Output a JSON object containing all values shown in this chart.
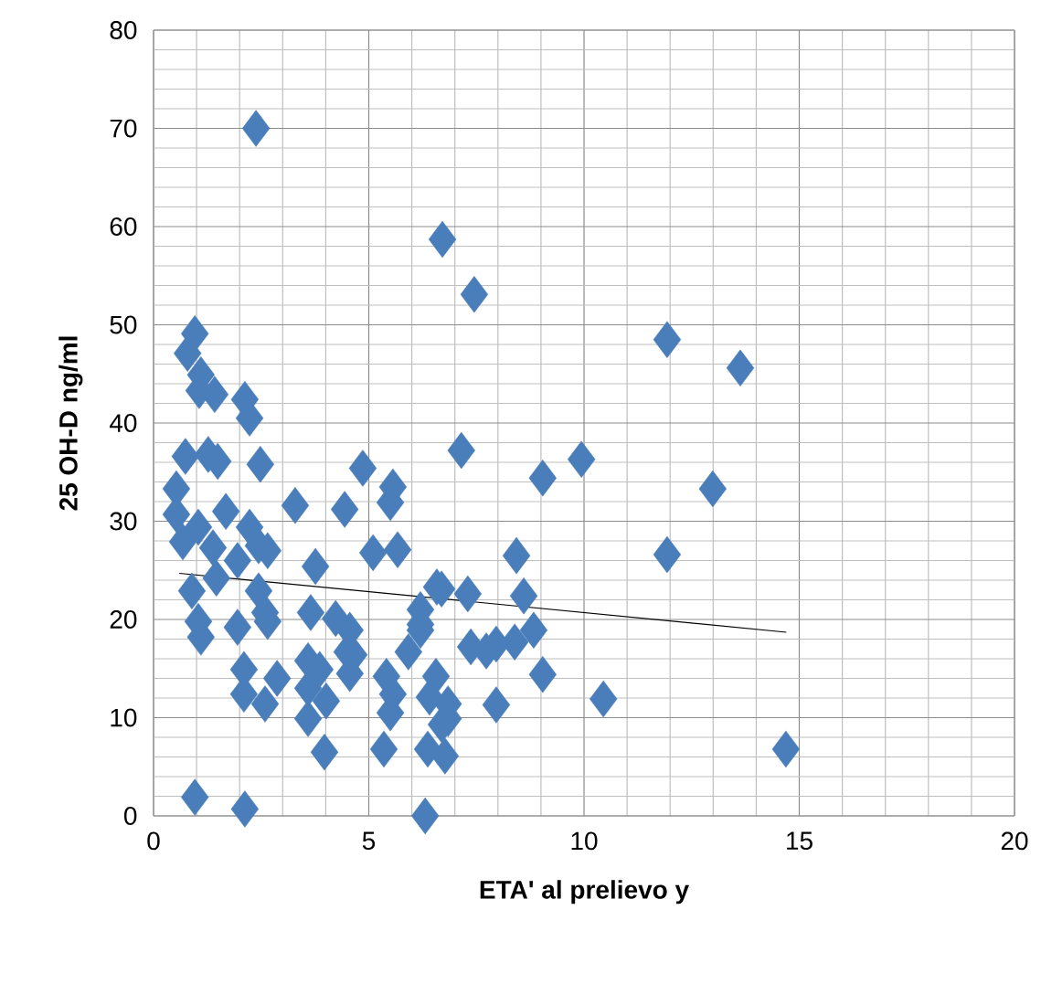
{
  "chart_data": {
    "type": "scatter",
    "xlabel": "ETA' al prelievo y",
    "ylabel": "25 OH-D ng/ml",
    "xlim": [
      0,
      20
    ],
    "xticks": [
      0,
      5,
      10,
      15,
      20
    ],
    "ylim": [
      0,
      80
    ],
    "yticks": [
      0,
      10,
      20,
      30,
      40,
      50,
      60,
      70,
      80
    ],
    "grid": true,
    "series": [
      {
        "marker": "diamond",
        "color": "#4a7ebb",
        "x": [
          0.96,
          0.79,
          1.1,
          1.06,
          1.42,
          2.12,
          2.23,
          0.74,
          1.27,
          1.49,
          2.48,
          0.53,
          3.29,
          4.44,
          4.86,
          5.56,
          5.5,
          7.15,
          0.53,
          1.04,
          1.68,
          2.23,
          2.38,
          6.71,
          7.45,
          11.93,
          13.63,
          9.94,
          9.04,
          12.99,
          8.43,
          11.93,
          8.6,
          8.39,
          8.83,
          9.04,
          10.45,
          14.69,
          0.96,
          2.12,
          6.31,
          7.96,
          7.37,
          7.96,
          7.3,
          6.69,
          3.76,
          5.1,
          5.67,
          6.58,
          4.56,
          4.65,
          4.56,
          6.2,
          7.73,
          5.92,
          5.41,
          5.56,
          5.5,
          5.35,
          6.56,
          6.84,
          6.69,
          6.37,
          6.77,
          6.2,
          0.68,
          1.38,
          2.44,
          2.65,
          0.89,
          1.46,
          1.95,
          2.44,
          2.59,
          1.1,
          1.04,
          1.95,
          2.65,
          3.65,
          4.23,
          4.5,
          2.1,
          2.1,
          2.59,
          2.87,
          3.59,
          3.59,
          3.86,
          4.01,
          3.59,
          3.97,
          6.41,
          6.84,
          6.2
        ],
        "values": [
          49.1,
          47.1,
          44.9,
          43.3,
          42.9,
          42.4,
          40.5,
          36.6,
          36.8,
          36.1,
          35.8,
          33.3,
          31.6,
          31.2,
          35.4,
          33.5,
          31.9,
          37.2,
          30.7,
          29.4,
          31.0,
          29.4,
          70.0,
          58.7,
          53.1,
          48.5,
          45.6,
          36.3,
          34.4,
          33.3,
          26.5,
          26.6,
          22.4,
          17.7,
          18.9,
          14.4,
          11.9,
          6.8,
          1.9,
          0.7,
          0,
          17.5,
          17.2,
          11.3,
          22.6,
          23.1,
          25.4,
          26.8,
          27.1,
          23.3,
          18.9,
          16.4,
          14.5,
          19.5,
          16.8,
          16.7,
          14.2,
          12.4,
          10.5,
          6.8,
          14.2,
          11.4,
          9.3,
          6.8,
          6.1,
          21.0,
          27.9,
          27.3,
          27.5,
          27.0,
          22.9,
          24.2,
          26.0,
          22.9,
          20.7,
          18.2,
          19.8,
          19.2,
          19.8,
          20.7,
          20.1,
          16.7,
          14.9,
          12.4,
          11.4,
          14.0,
          15.8,
          13.0,
          14.9,
          11.7,
          9.9,
          6.5,
          12.1,
          9.9,
          18.9
        ]
      },
      {
        "type": "line",
        "marker": "none",
        "color": "#000000",
        "x": [
          0.6,
          14.7
        ],
        "values": [
          24.7,
          18.7
        ]
      }
    ]
  }
}
